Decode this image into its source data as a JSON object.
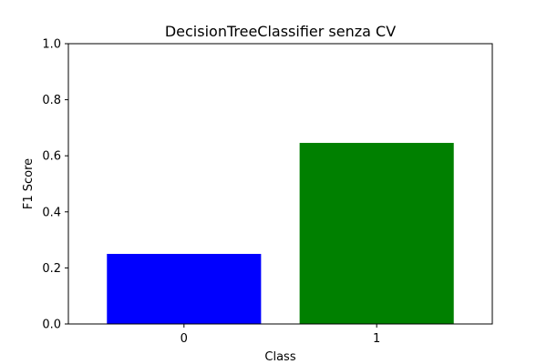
{
  "chart_data": {
    "type": "bar",
    "title": "DecisionTreeClassifier senza CV",
    "xlabel": "Class",
    "ylabel": "F1 Score",
    "categories": [
      "0",
      "1"
    ],
    "values": [
      0.25,
      0.646
    ],
    "colors": [
      "#0000ff",
      "#008000"
    ],
    "ylim": [
      0.0,
      1.0
    ],
    "yticks": [
      "0.0",
      "0.2",
      "0.4",
      "0.6",
      "0.8",
      "1.0"
    ],
    "grid": false,
    "legend": "none"
  }
}
